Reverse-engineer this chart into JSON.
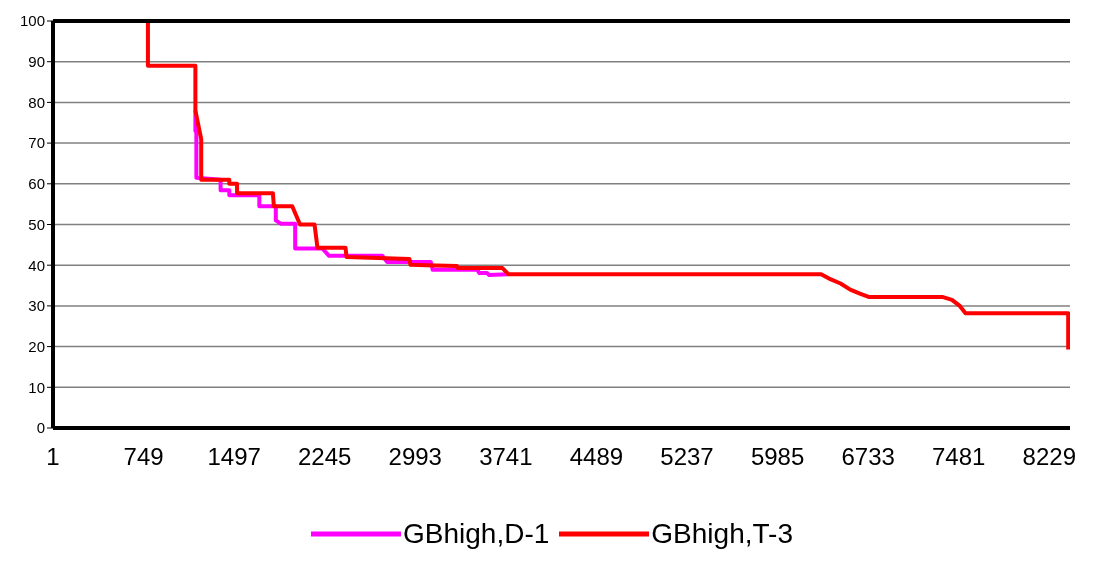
{
  "chart_data": {
    "type": "line",
    "xlim": [
      1,
      8400
    ],
    "xticks": [
      1,
      749,
      1497,
      2245,
      2993,
      3741,
      4489,
      5237,
      5985,
      6733,
      7481,
      8229
    ],
    "ylim": [
      0,
      100
    ],
    "yticks": [
      0,
      10,
      20,
      30,
      40,
      50,
      60,
      70,
      80,
      90,
      100
    ],
    "grid": "y",
    "legend": "bottom",
    "marker": "none",
    "line_style": "solid",
    "series": [
      {
        "name": "GBhigh,D-1",
        "color": "#ff00ff",
        "x": [
          1177,
          1177,
          1185,
          1185,
          1385,
          1385,
          1457,
          1457,
          1705,
          1705,
          1841,
          1841,
          1881,
          2001,
          2001,
          2225,
          2281,
          2721,
          2761,
          3121,
          3137,
          3505,
          3521,
          3585,
          3601,
          3761
        ],
        "values": [
          78,
          73,
          73,
          61.5,
          61,
          58.4,
          58.4,
          57.2,
          57.2,
          54.5,
          54.5,
          51,
          50.2,
          50.2,
          44.1,
          44.1,
          42.3,
          42.3,
          40.8,
          40.8,
          38.9,
          38.9,
          38.1,
          38.1,
          37.6,
          37.8
        ]
      },
      {
        "name": "GBhigh,T-3",
        "color": "#ff0000",
        "x": [
          785,
          785,
          1177,
          1177,
          1225,
          1225,
          1457,
          1457,
          1521,
          1521,
          1817,
          1825,
          1977,
          2041,
          2161,
          2185,
          2417,
          2425,
          2945,
          2953,
          3081,
          3337,
          3345,
          3713,
          3761,
          6345,
          6425,
          6505,
          6585,
          6665,
          6737,
          7345,
          7425,
          7490,
          7537,
          8385,
          8385
        ],
        "values": [
          100,
          89,
          89,
          78,
          71,
          61,
          61,
          60,
          60,
          57.7,
          57.7,
          54.5,
          54.5,
          50,
          50,
          44.3,
          44.3,
          42,
          41.5,
          40.1,
          40,
          39.8,
          39.3,
          39.3,
          37.8,
          37.8,
          36.5,
          35.5,
          34,
          33,
          32.2,
          32.2,
          31.5,
          30,
          28.2,
          28.2,
          19.3
        ]
      }
    ]
  }
}
